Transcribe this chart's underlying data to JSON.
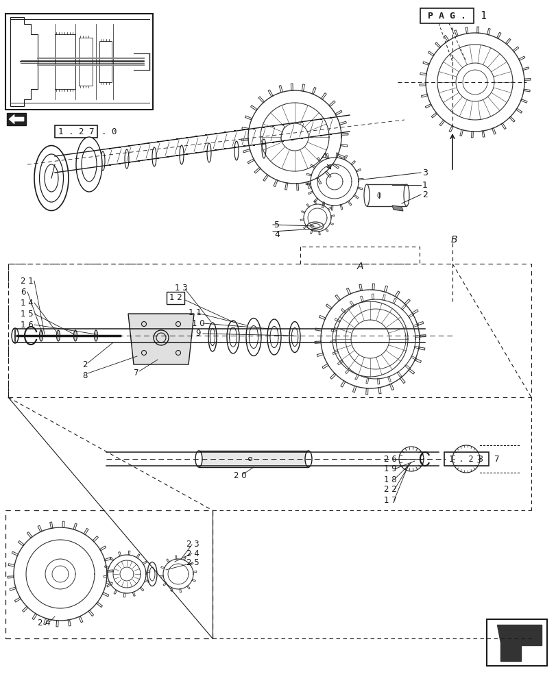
{
  "bg_color": "#ffffff",
  "dc": "#1a1a1a",
  "lc": "#444444",
  "gc": "#333333",
  "pag_label": "P A G .",
  "pag_number": "1",
  "ref_127": "1 . 2 7",
  "ref_128": "1 . 2 8",
  "ref_128_num": "7",
  "fig_width": 8.12,
  "fig_height": 10.0
}
